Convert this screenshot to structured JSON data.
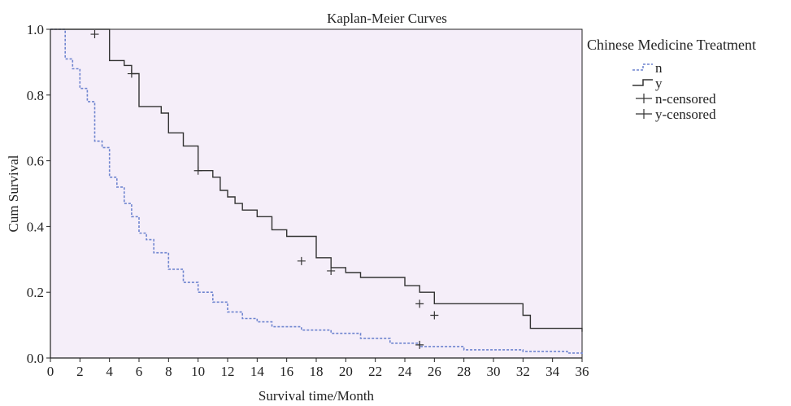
{
  "chart_data": {
    "type": "line",
    "step": true,
    "title": "Kaplan-Meier Curves",
    "xlabel": "Survival time/Month",
    "ylabel": "Cum Survival",
    "xlim": [
      0,
      36
    ],
    "ylim": [
      0,
      1
    ],
    "xticks": [
      0,
      2,
      4,
      6,
      8,
      10,
      12,
      14,
      16,
      18,
      20,
      22,
      24,
      26,
      28,
      30,
      32,
      34,
      36
    ],
    "xtick_labels": [
      "0",
      "2",
      "4",
      "6",
      "8",
      "10",
      "12",
      "14",
      "16",
      "18",
      "20",
      "22",
      "24",
      "26",
      "28",
      "30",
      "32",
      "34",
      "36"
    ],
    "yticks": [
      0,
      0.2,
      0.4,
      0.6,
      0.8,
      1
    ],
    "ytick_labels": [
      "0.0",
      "0.2",
      "0.4",
      "0.6",
      "0.8",
      "1.0"
    ],
    "plot_background": "#F5EEF9",
    "grid": false,
    "legend": {
      "title": "Chinese Medicine Treatment",
      "position": "right",
      "entries": [
        {
          "label": "n",
          "kind": "step-dashed",
          "color": "#6E84CF"
        },
        {
          "label": "y",
          "kind": "step-solid",
          "color": "#333333"
        },
        {
          "label": "n-censored",
          "kind": "censor",
          "color": "#333333"
        },
        {
          "label": "y-censored",
          "kind": "censor",
          "color": "#333333"
        }
      ]
    },
    "series": [
      {
        "name": "n",
        "color": "#6E84CF",
        "style": "dashed",
        "x": [
          0,
          1,
          1.5,
          2,
          2.5,
          3,
          3.5,
          4,
          4.5,
          5,
          5.5,
          6,
          6.5,
          7,
          8,
          9,
          10,
          11,
          12,
          13,
          14,
          15,
          17,
          19,
          21,
          23,
          25,
          28,
          32,
          35,
          36
        ],
        "y": [
          1.0,
          0.91,
          0.88,
          0.82,
          0.78,
          0.66,
          0.64,
          0.55,
          0.52,
          0.47,
          0.43,
          0.38,
          0.36,
          0.32,
          0.27,
          0.23,
          0.2,
          0.17,
          0.14,
          0.12,
          0.11,
          0.095,
          0.085,
          0.075,
          0.06,
          0.045,
          0.035,
          0.025,
          0.02,
          0.015,
          0.012
        ],
        "censored": [
          {
            "x": 25,
            "y": 0.04
          }
        ]
      },
      {
        "name": "y",
        "color": "#333333",
        "style": "solid",
        "x": [
          0,
          4,
          5,
          5.5,
          6,
          7.5,
          8,
          9,
          10,
          11,
          11.5,
          12,
          12.5,
          13,
          14,
          15,
          16,
          18,
          19,
          20,
          21,
          24,
          25,
          26,
          32,
          32.5,
          36
        ],
        "y": [
          1.0,
          0.905,
          0.89,
          0.865,
          0.765,
          0.745,
          0.685,
          0.645,
          0.57,
          0.55,
          0.51,
          0.49,
          0.47,
          0.45,
          0.43,
          0.39,
          0.37,
          0.305,
          0.275,
          0.26,
          0.245,
          0.22,
          0.2,
          0.165,
          0.13,
          0.09,
          0.08
        ],
        "censored": [
          {
            "x": 3,
            "y": 0.985
          },
          {
            "x": 5.5,
            "y": 0.865
          },
          {
            "x": 10,
            "y": 0.57
          },
          {
            "x": 17,
            "y": 0.295
          },
          {
            "x": 19,
            "y": 0.265
          },
          {
            "x": 25,
            "y": 0.165
          },
          {
            "x": 26,
            "y": 0.13
          }
        ]
      }
    ]
  }
}
